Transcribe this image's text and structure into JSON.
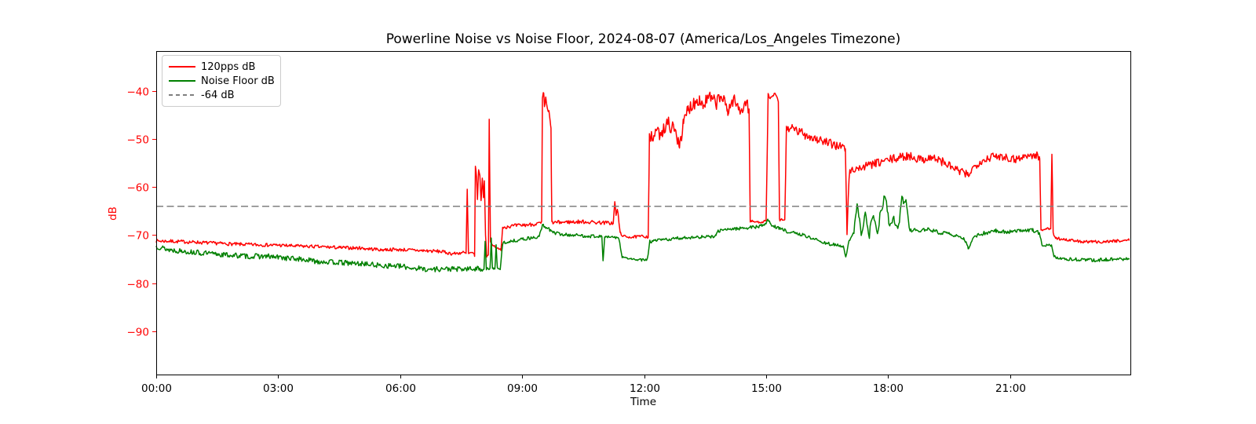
{
  "axes": {
    "ytick_color": "#ff0000",
    "xtick_color": "#000000",
    "ylabel_color": "#ff0000",
    "spine_color": "#000000",
    "background": "#ffffff"
  },
  "legend": {
    "entries": [
      {
        "label": "120pps dB",
        "color": "#ff0000",
        "style": "solid"
      },
      {
        "label": "Noise Floor dB",
        "color": "#008000",
        "style": "solid"
      },
      {
        "label": "-64 dB",
        "color": "#7f7f7f",
        "style": "dashed"
      }
    ]
  },
  "chart_data": {
    "type": "line",
    "title": "Powerline Noise vs Noise Floor, 2024-08-07 (America/Los_Angeles Timezone)",
    "xlabel": "Time",
    "ylabel": "dB",
    "x_unit": "hours_since_midnight",
    "xlim": [
      0,
      23.96
    ],
    "ylim": [
      -99.0,
      -31.7
    ],
    "grid": false,
    "legend_location": "upper left",
    "xticks": {
      "values": [
        0,
        3,
        6,
        9,
        12,
        15,
        18,
        21
      ],
      "labels": [
        "00:00",
        "03:00",
        "06:00",
        "09:00",
        "12:00",
        "15:00",
        "18:00",
        "21:00"
      ]
    },
    "yticks": {
      "values": [
        -40,
        -50,
        -60,
        -70,
        -80,
        -90
      ],
      "labels": [
        "−40",
        "−50",
        "−60",
        "−70",
        "−80",
        "−90"
      ]
    },
    "reference_line": {
      "label": "-64 dB",
      "value": -64,
      "color": "#7f7f7f",
      "linestyle": "dashed"
    },
    "series": [
      {
        "name": "120pps dB",
        "color": "#ff0000",
        "noise_zones": [
          [
            0,
            7.6,
            0.35
          ],
          [
            7.6,
            8.52,
            0.2
          ],
          [
            8.52,
            11.24,
            0.4
          ],
          [
            11.24,
            12.1,
            0.3
          ],
          [
            12.13,
            14.58,
            1.5
          ],
          [
            14.58,
            15.02,
            0.25
          ],
          [
            15.02,
            15.48,
            0.35
          ],
          [
            15.48,
            16.95,
            1.0
          ],
          [
            17.04,
            21.73,
            0.9
          ],
          [
            21.73,
            22.1,
            0.2
          ],
          [
            22.1,
            24,
            0.3
          ]
        ],
        "keypoints": [
          [
            0,
            -71.2
          ],
          [
            0.5,
            -71.3
          ],
          [
            1,
            -71.5
          ],
          [
            1.5,
            -71.7
          ],
          [
            2,
            -71.9
          ],
          [
            2.5,
            -72
          ],
          [
            3,
            -72.1
          ],
          [
            3.5,
            -72.3
          ],
          [
            4,
            -72.4
          ],
          [
            4.5,
            -72.6
          ],
          [
            5,
            -72.7
          ],
          [
            5.5,
            -73
          ],
          [
            6,
            -73
          ],
          [
            6.5,
            -73.2
          ],
          [
            7,
            -73.4
          ],
          [
            7.3,
            -73.9
          ],
          [
            7.55,
            -73.6
          ],
          [
            7.62,
            -73.8
          ],
          [
            7.65,
            -60.5
          ],
          [
            7.68,
            -73.9
          ],
          [
            7.8,
            -73.6
          ],
          [
            7.83,
            -74.3
          ],
          [
            7.85,
            -55.5
          ],
          [
            7.88,
            -58
          ],
          [
            7.9,
            -62.5
          ],
          [
            7.93,
            -56.5
          ],
          [
            7.96,
            -57.5
          ],
          [
            7.99,
            -63
          ],
          [
            8.02,
            -58
          ],
          [
            8.05,
            -62
          ],
          [
            8.07,
            -58.5
          ],
          [
            8.1,
            -70
          ],
          [
            8.13,
            -74.5
          ],
          [
            8.17,
            -74
          ],
          [
            8.19,
            -46
          ],
          [
            8.22,
            -71.5
          ],
          [
            8.28,
            -72
          ],
          [
            8.35,
            -72.5
          ],
          [
            8.43,
            -73
          ],
          [
            8.48,
            -73
          ],
          [
            8.52,
            -68.3
          ],
          [
            8.9,
            -68
          ],
          [
            9.2,
            -67.8
          ],
          [
            9.48,
            -67.5
          ],
          [
            9.5,
            -41.5
          ],
          [
            9.53,
            -40.3
          ],
          [
            9.55,
            -43.5
          ],
          [
            9.58,
            -41.2
          ],
          [
            9.62,
            -44
          ],
          [
            9.66,
            -44.3
          ],
          [
            9.69,
            -46.5
          ],
          [
            9.71,
            -48
          ],
          [
            9.73,
            -67.4
          ],
          [
            10.1,
            -67.3
          ],
          [
            10.5,
            -67.2
          ],
          [
            10.9,
            -67.4
          ],
          [
            11.24,
            -67.5
          ],
          [
            11.28,
            -63
          ],
          [
            11.31,
            -66
          ],
          [
            11.34,
            -64.5
          ],
          [
            11.37,
            -66.5
          ],
          [
            11.41,
            -69.5
          ],
          [
            11.5,
            -70.3
          ],
          [
            11.75,
            -70.4
          ],
          [
            12,
            -70.2
          ],
          [
            12.1,
            -70.4
          ],
          [
            12.13,
            -50.2
          ],
          [
            12.3,
            -49.2
          ],
          [
            12.45,
            -48.2
          ],
          [
            12.6,
            -46.6
          ],
          [
            12.75,
            -48.4
          ],
          [
            12.87,
            -50.8
          ],
          [
            12.97,
            -47
          ],
          [
            13.07,
            -44
          ],
          [
            13.2,
            -42.6
          ],
          [
            13.35,
            -41.6
          ],
          [
            13.45,
            -43
          ],
          [
            13.6,
            -41.2
          ],
          [
            13.75,
            -42.6
          ],
          [
            13.9,
            -41.2
          ],
          [
            14.05,
            -44
          ],
          [
            14.2,
            -42
          ],
          [
            14.35,
            -44
          ],
          [
            14.5,
            -42.6
          ],
          [
            14.58,
            -43.8
          ],
          [
            14.61,
            -67.1
          ],
          [
            14.8,
            -67.3
          ],
          [
            15,
            -67.1
          ],
          [
            15.05,
            -40.8
          ],
          [
            15.12,
            -41.6
          ],
          [
            15.22,
            -40.6
          ],
          [
            15.3,
            -42
          ],
          [
            15.33,
            -66.9
          ],
          [
            15.46,
            -66.8
          ],
          [
            15.5,
            -47.4
          ],
          [
            15.65,
            -48
          ],
          [
            15.95,
            -49
          ],
          [
            16.25,
            -50
          ],
          [
            16.55,
            -51
          ],
          [
            16.8,
            -51.4
          ],
          [
            16.95,
            -52
          ],
          [
            16.99,
            -69.8
          ],
          [
            17.04,
            -57.5
          ],
          [
            17.1,
            -56.4
          ],
          [
            17.3,
            -56
          ],
          [
            17.6,
            -55.4
          ],
          [
            17.9,
            -54.6
          ],
          [
            18.2,
            -54
          ],
          [
            18.5,
            -53.5
          ],
          [
            18.8,
            -54.2
          ],
          [
            19.1,
            -53.8
          ],
          [
            19.4,
            -55
          ],
          [
            19.7,
            -56.5
          ],
          [
            19.95,
            -57.5
          ],
          [
            20.2,
            -55
          ],
          [
            20.5,
            -53.8
          ],
          [
            20.8,
            -53.5
          ],
          [
            21.1,
            -54.2
          ],
          [
            21.4,
            -53.6
          ],
          [
            21.65,
            -53.4
          ],
          [
            21.73,
            -54
          ],
          [
            21.76,
            -69
          ],
          [
            21.9,
            -68.6
          ],
          [
            22,
            -68.8
          ],
          [
            22.03,
            -53.2
          ],
          [
            22.06,
            -69.6
          ],
          [
            22.12,
            -70.6
          ],
          [
            22.4,
            -71
          ],
          [
            22.8,
            -71.4
          ],
          [
            23.2,
            -71.4
          ],
          [
            23.6,
            -71.2
          ],
          [
            23.93,
            -71
          ]
        ]
      },
      {
        "name": "Noise Floor dB",
        "color": "#008000",
        "noise_zones": [
          [
            0,
            8.05,
            0.55
          ],
          [
            8.05,
            8.5,
            0.25
          ],
          [
            8.52,
            10.95,
            0.35
          ],
          [
            10.95,
            12.13,
            0.25
          ],
          [
            12.14,
            16.9,
            0.35
          ],
          [
            16.9,
            17.14,
            0.2
          ],
          [
            17.14,
            18.6,
            0.9
          ],
          [
            18.6,
            21.75,
            0.4
          ],
          [
            21.75,
            24,
            0.35
          ]
        ],
        "keypoints": [
          [
            0,
            -72.3
          ],
          [
            0.3,
            -73
          ],
          [
            0.7,
            -73.4
          ],
          [
            1.1,
            -73.7
          ],
          [
            1.5,
            -74
          ],
          [
            1.9,
            -74.2
          ],
          [
            2.3,
            -74.4
          ],
          [
            2.7,
            -74.4
          ],
          [
            3.1,
            -74.7
          ],
          [
            3.5,
            -75
          ],
          [
            3.9,
            -75.4
          ],
          [
            4.3,
            -75.6
          ],
          [
            4.7,
            -75.8
          ],
          [
            5.1,
            -76
          ],
          [
            5.5,
            -76.3
          ],
          [
            5.9,
            -76.4
          ],
          [
            6.3,
            -76.8
          ],
          [
            6.7,
            -77.1
          ],
          [
            7.1,
            -77
          ],
          [
            7.5,
            -77.1
          ],
          [
            7.9,
            -77
          ],
          [
            8.06,
            -77
          ],
          [
            8.09,
            -71.3
          ],
          [
            8.12,
            -77
          ],
          [
            8.21,
            -77
          ],
          [
            8.24,
            -70.8
          ],
          [
            8.27,
            -77
          ],
          [
            8.33,
            -77
          ],
          [
            8.36,
            -72
          ],
          [
            8.39,
            -77
          ],
          [
            8.46,
            -77.2
          ],
          [
            8.52,
            -71.6
          ],
          [
            8.9,
            -71
          ],
          [
            9.2,
            -70.6
          ],
          [
            9.42,
            -70.4
          ],
          [
            9.5,
            -68
          ],
          [
            9.62,
            -68.4
          ],
          [
            9.74,
            -69.4
          ],
          [
            10,
            -69.9
          ],
          [
            10.3,
            -70
          ],
          [
            10.6,
            -70.2
          ],
          [
            10.9,
            -70.2
          ],
          [
            10.96,
            -70.3
          ],
          [
            10.99,
            -75.5
          ],
          [
            11.03,
            -70.4
          ],
          [
            11.2,
            -70.4
          ],
          [
            11.38,
            -70.6
          ],
          [
            11.46,
            -74.6
          ],
          [
            11.7,
            -75
          ],
          [
            11.95,
            -75.2
          ],
          [
            12.08,
            -75
          ],
          [
            12.14,
            -71.4
          ],
          [
            12.4,
            -71
          ],
          [
            12.7,
            -70.8
          ],
          [
            13,
            -70.5
          ],
          [
            13.3,
            -70.4
          ],
          [
            13.6,
            -70.3
          ],
          [
            13.77,
            -70.2
          ],
          [
            13.82,
            -69.1
          ],
          [
            14.1,
            -68.8
          ],
          [
            14.4,
            -68.5
          ],
          [
            14.7,
            -68.4
          ],
          [
            14.95,
            -67.9
          ],
          [
            15.04,
            -66.9
          ],
          [
            15.14,
            -67.9
          ],
          [
            15.32,
            -68.6
          ],
          [
            15.58,
            -69.4
          ],
          [
            15.88,
            -69.9
          ],
          [
            16.12,
            -70.6
          ],
          [
            16.38,
            -71.5
          ],
          [
            16.68,
            -72
          ],
          [
            16.9,
            -72.4
          ],
          [
            16.96,
            -74.6
          ],
          [
            17.04,
            -71.2
          ],
          [
            17.14,
            -70
          ],
          [
            17.24,
            -63.8
          ],
          [
            17.34,
            -69.6
          ],
          [
            17.44,
            -66
          ],
          [
            17.54,
            -69.8
          ],
          [
            17.64,
            -65.2
          ],
          [
            17.74,
            -69.2
          ],
          [
            17.84,
            -64.2
          ],
          [
            17.94,
            -61.6
          ],
          [
            18.04,
            -68.6
          ],
          [
            18.14,
            -66.2
          ],
          [
            18.24,
            -69
          ],
          [
            18.34,
            -62.8
          ],
          [
            18.44,
            -63.4
          ],
          [
            18.54,
            -68.8
          ],
          [
            18.7,
            -69
          ],
          [
            18.95,
            -68.8
          ],
          [
            19.25,
            -69.4
          ],
          [
            19.55,
            -69.9
          ],
          [
            19.85,
            -70.6
          ],
          [
            19.97,
            -72.6
          ],
          [
            20.12,
            -70.4
          ],
          [
            20.35,
            -69.6
          ],
          [
            20.65,
            -69.1
          ],
          [
            20.95,
            -69.3
          ],
          [
            21.25,
            -69
          ],
          [
            21.55,
            -68.9
          ],
          [
            21.72,
            -69.5
          ],
          [
            21.79,
            -72
          ],
          [
            22.02,
            -72.3
          ],
          [
            22.08,
            -74.6
          ],
          [
            22.35,
            -74.9
          ],
          [
            22.7,
            -75.1
          ],
          [
            23.1,
            -75.2
          ],
          [
            23.5,
            -75
          ],
          [
            23.93,
            -75
          ]
        ]
      }
    ]
  }
}
